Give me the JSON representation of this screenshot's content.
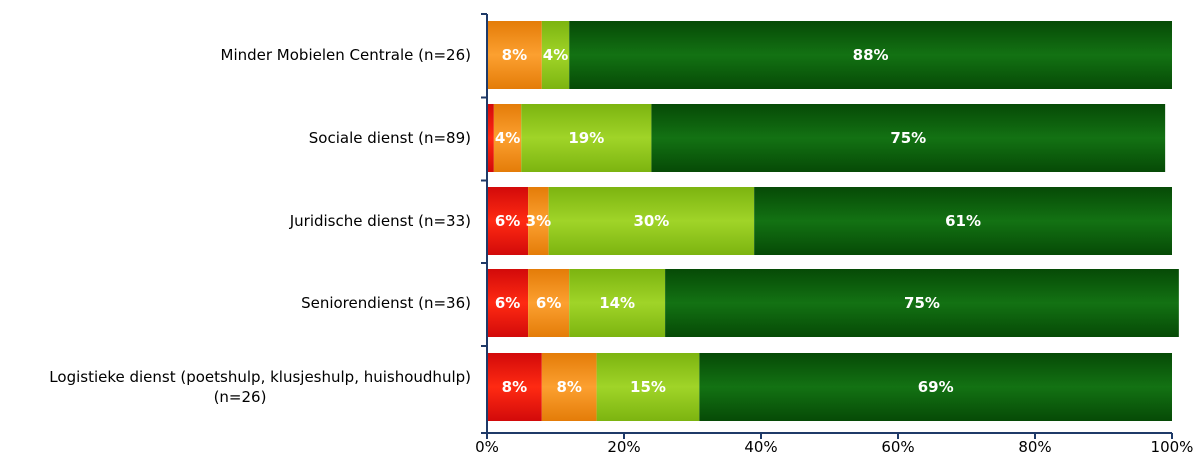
{
  "chart_data": {
    "type": "bar",
    "orientation": "horizontal",
    "stacked": true,
    "categories": [
      [
        "Minder Mobielen Centrale (n=26)"
      ],
      [
        "Sociale dienst (n=89)"
      ],
      [
        "Juridische dienst (n=33)"
      ],
      [
        "Seniorendienst (n=36)"
      ],
      [
        "Logistieke dienst (poetshulp, klusjeshulp, huishoudhulp)",
        "(n=26)"
      ]
    ],
    "series": [
      {
        "color": "#e01010",
        "values": [
          0,
          1,
          6,
          6,
          8
        ],
        "labels": [
          "",
          "",
          "6%",
          "6%",
          "8%"
        ]
      },
      {
        "color": "#ee8a10",
        "values": [
          8,
          4,
          3,
          6,
          8
        ],
        "labels": [
          "8%",
          "4%",
          "3%",
          "6%",
          "8%"
        ]
      },
      {
        "color": "#8cc418",
        "values": [
          4,
          19,
          30,
          14,
          15
        ],
        "labels": [
          "4%",
          "19%",
          "30%",
          "14%",
          "15%"
        ]
      },
      {
        "color": "#0d5e0d",
        "values": [
          88,
          75,
          61,
          75,
          69
        ],
        "labels": [
          "88%",
          "75%",
          "61%",
          "75%",
          "69%"
        ]
      }
    ],
    "xlim": [
      0,
      100
    ],
    "x_ticks": [
      "0%",
      "20%",
      "40%",
      "60%",
      "80%",
      "100%"
    ],
    "axis_color": "#1f3a68",
    "title": "",
    "xlabel": "",
    "ylabel": ""
  }
}
